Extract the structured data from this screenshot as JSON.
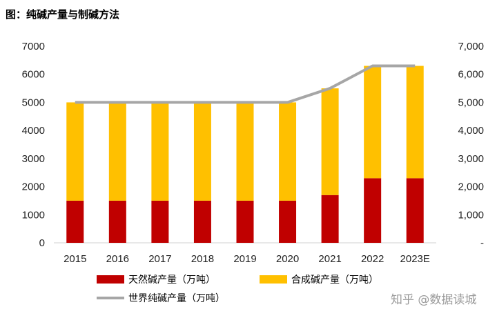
{
  "title": "图：纯碱产量与制碱方法",
  "watermark": "知乎 @数据读城",
  "colors": {
    "natural": "#c00000",
    "synthetic": "#ffc000",
    "world": "#a6a6a6"
  },
  "chart_data": {
    "type": "bar",
    "stacked": true,
    "categories": [
      "2015",
      "2016",
      "2017",
      "2018",
      "2019",
      "2020",
      "2021",
      "2022",
      "2023E"
    ],
    "series": [
      {
        "name": "天然碱产量（万吨）",
        "kind": "bar",
        "axis": "left",
        "values": [
          1500,
          1500,
          1500,
          1500,
          1500,
          1500,
          1700,
          2300,
          2300
        ]
      },
      {
        "name": "合成碱产量（万吨）",
        "kind": "bar",
        "axis": "left",
        "values": [
          3500,
          3500,
          3500,
          3500,
          3500,
          3500,
          3800,
          4000,
          4000
        ]
      },
      {
        "name": "世界纯碱产量（万吨）",
        "kind": "line",
        "axis": "right",
        "values": [
          5000,
          5000,
          5000,
          5000,
          5000,
          5000,
          5500,
          6300,
          6300
        ]
      }
    ],
    "ylim": [
      0,
      7000
    ],
    "y_ticks": [
      "0",
      "1000",
      "2000",
      "3000",
      "4000",
      "5000",
      "6000",
      "7000"
    ],
    "y2lim": [
      0,
      7000
    ],
    "y2_ticks": [
      "-",
      "1,000",
      "2,000",
      "3,000",
      "4,000",
      "5,000",
      "6,000",
      "7,000"
    ],
    "legend_position": "bottom",
    "grid": false
  }
}
